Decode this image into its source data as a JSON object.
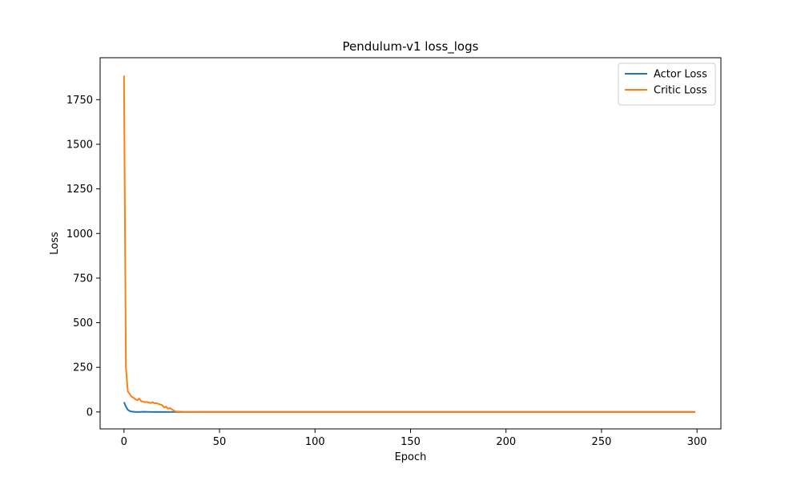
{
  "chart_data": {
    "type": "line",
    "title": "Pendulum-v1 loss_logs",
    "xlabel": "Epoch",
    "ylabel": "Loss",
    "xlim": [
      -12.5,
      312.5
    ],
    "ylim": [
      -95,
      1985
    ],
    "xticks": [
      0,
      50,
      100,
      150,
      200,
      250,
      300
    ],
    "yticks": [
      0,
      250,
      500,
      750,
      1000,
      1250,
      1500,
      1750
    ],
    "grid": false,
    "legend_position": "top-right",
    "series": [
      {
        "name": "Actor Loss",
        "color": "#1f77b4",
        "x": [
          0,
          1,
          2,
          3,
          4,
          5,
          6,
          8,
          10,
          15,
          20,
          25,
          30,
          50,
          100,
          150,
          200,
          250,
          299
        ],
        "y": [
          55,
          30,
          12,
          5,
          2,
          1,
          0,
          0,
          1,
          0,
          0,
          0,
          0,
          0,
          0,
          0,
          0,
          0,
          0
        ]
      },
      {
        "name": "Critic Loss",
        "color": "#ff7f0e",
        "x": [
          0,
          1,
          2,
          3,
          4,
          5,
          6,
          7,
          8,
          9,
          10,
          11,
          12,
          13,
          14,
          15,
          16,
          17,
          18,
          19,
          20,
          21,
          22,
          23,
          24,
          25,
          26,
          27,
          30,
          50,
          100,
          150,
          200,
          250,
          299
        ],
        "y": [
          1885,
          250,
          115,
          100,
          85,
          80,
          70,
          65,
          75,
          60,
          58,
          55,
          56,
          52,
          50,
          55,
          48,
          50,
          45,
          42,
          38,
          25,
          30,
          18,
          22,
          15,
          8,
          3,
          1,
          0.5,
          0.3,
          0.2,
          0.2,
          0.2,
          0.2
        ]
      }
    ]
  }
}
